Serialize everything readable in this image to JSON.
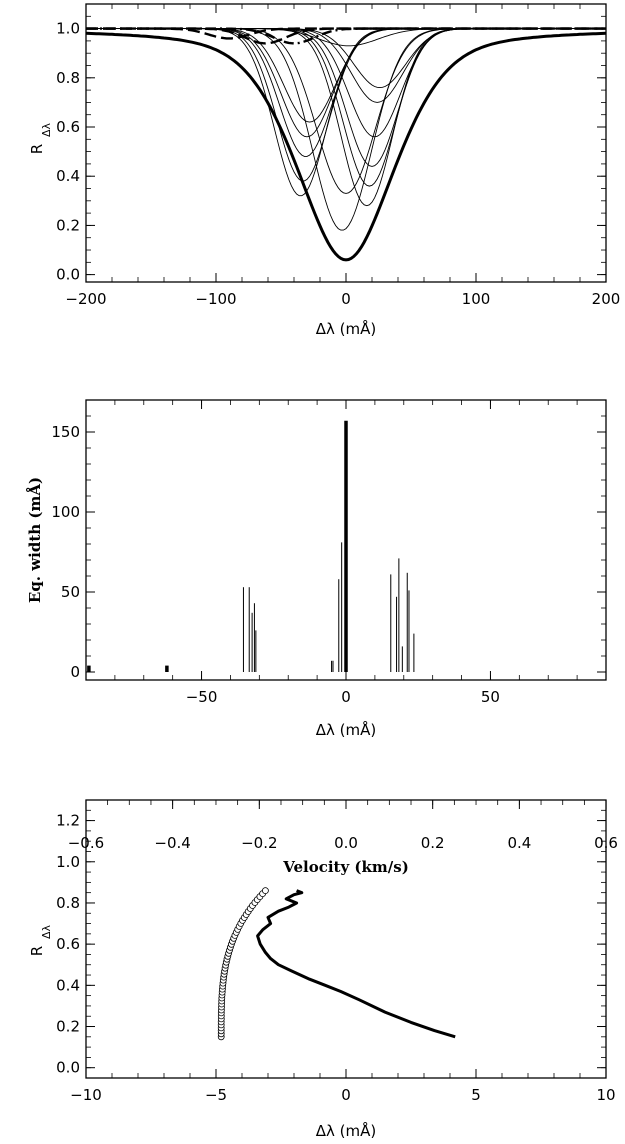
{
  "chart_data": [
    {
      "type": "line",
      "xlabel": "Δλ (mÅ)",
      "ylabel_main": "R",
      "ylabel_sub": "Δλ",
      "xlim": [
        -200,
        200
      ],
      "ylim": [
        -0.03,
        1.1
      ],
      "xticks": [
        -200,
        -100,
        0,
        100,
        200
      ],
      "xtick_labels": [
        "−200",
        "−100",
        "0",
        "100",
        "200"
      ],
      "yticks": [
        0.0,
        0.2,
        0.4,
        0.6,
        0.8,
        1.0
      ],
      "ytick_labels": [
        "0.0",
        "0.2",
        "0.4",
        "0.6",
        "0.8",
        "1.0"
      ],
      "total_profile": {
        "center": 0,
        "depth": 0.94,
        "width": 55,
        "line_width": 3
      },
      "component_profiles": [
        {
          "center": -35,
          "depth": 0.68,
          "width": 28
        },
        {
          "center": -33,
          "depth": 0.62,
          "width": 28
        },
        {
          "center": -31,
          "depth": 0.52,
          "width": 28
        },
        {
          "center": -30,
          "depth": 0.44,
          "width": 28
        },
        {
          "center": -28,
          "depth": 0.38,
          "width": 28
        },
        {
          "center": -3,
          "depth": 0.82,
          "width": 32
        },
        {
          "center": 0,
          "depth": 0.67,
          "width": 32
        },
        {
          "center": 2,
          "depth": 0.07,
          "width": 32
        },
        {
          "center": 16,
          "depth": 0.72,
          "width": 28
        },
        {
          "center": 18,
          "depth": 0.64,
          "width": 28
        },
        {
          "center": 20,
          "depth": 0.56,
          "width": 28
        },
        {
          "center": 22,
          "depth": 0.44,
          "width": 28
        },
        {
          "center": 24,
          "depth": 0.3,
          "width": 28
        },
        {
          "center": 26,
          "depth": 0.24,
          "width": 28
        }
      ],
      "small_profiles": [
        {
          "center": -90,
          "depth": 0.04,
          "width": 22,
          "style": "dashed"
        },
        {
          "center": -62,
          "depth": 0.06,
          "width": 22,
          "style": "dashed"
        },
        {
          "center": -40,
          "depth": 0.06,
          "width": 22,
          "style": "dash-dot"
        }
      ]
    },
    {
      "type": "bar",
      "xlabel": "Δλ (mÅ)",
      "ylabel": "Eq. width (mÅ)",
      "xlim": [
        -90,
        90
      ],
      "ylim": [
        -5,
        170
      ],
      "xticks": [
        -50,
        0,
        50
      ],
      "xtick_labels": [
        "−50",
        "0",
        "50"
      ],
      "yticks": [
        0,
        50,
        100,
        150
      ],
      "ytick_labels": [
        "0",
        "50",
        "100",
        "150"
      ],
      "bars": [
        {
          "x": -89,
          "value": 4,
          "thick": true
        },
        {
          "x": -62,
          "value": 4,
          "thick": true
        },
        {
          "x": -35.5,
          "value": 53
        },
        {
          "x": -33.5,
          "value": 53
        },
        {
          "x": -32.5,
          "value": 37
        },
        {
          "x": -31.7,
          "value": 43
        },
        {
          "x": -31.2,
          "value": 26
        },
        {
          "x": -5,
          "value": 7
        },
        {
          "x": -4.5,
          "value": 7
        },
        {
          "x": -2.5,
          "value": 58
        },
        {
          "x": -1.5,
          "value": 81
        },
        {
          "x": 0,
          "value": 157,
          "thick": true
        },
        {
          "x": 15.5,
          "value": 61
        },
        {
          "x": 17.5,
          "value": 47
        },
        {
          "x": 18.3,
          "value": 71
        },
        {
          "x": 19.5,
          "value": 16
        },
        {
          "x": 21.2,
          "value": 62
        },
        {
          "x": 21.8,
          "value": 51
        },
        {
          "x": 23.5,
          "value": 24
        }
      ]
    },
    {
      "type": "scatter",
      "xlabel": "Δλ (mÅ)",
      "top_xlabel": "Velocity (km/s)",
      "ylabel_main": "R",
      "ylabel_sub": "Δλ",
      "xlim": [
        -10,
        10
      ],
      "ylim": [
        -0.05,
        1.3
      ],
      "xticks": [
        -10,
        -5,
        0,
        5,
        10
      ],
      "xtick_labels": [
        "−10",
        "−5",
        "0",
        "5",
        "10"
      ],
      "top_xticks": [
        -0.6,
        -0.4,
        -0.2,
        0.0,
        0.2,
        0.4,
        0.6
      ],
      "top_xtick_labels": [
        "−0.6",
        "−0.4",
        "−0.2",
        "0.0",
        "0.2",
        "0.4",
        "0.6"
      ],
      "top_axis_factor": 16.67,
      "yticks": [
        0.0,
        0.2,
        0.4,
        0.6,
        0.8,
        1.0,
        1.2
      ],
      "ytick_labels": [
        "0.0",
        "0.2",
        "0.4",
        "0.6",
        "0.8",
        "1.0",
        "1.2"
      ],
      "circle_points": {
        "count": 50,
        "start": [
          -4.8,
          0.15
        ],
        "end": [
          -3.1,
          0.86
        ]
      },
      "bisector": {
        "x": [
          4.2,
          3.4,
          2.5,
          1.5,
          0.5,
          -0.2,
          -0.8,
          -1.4,
          -2.1,
          -2.6,
          -2.9,
          -3.1,
          -3.3,
          -3.4,
          -3.2,
          -2.9,
          -3.0,
          -2.6,
          -2.2,
          -1.9,
          -2.3,
          -2.0,
          -1.7,
          -1.9
        ],
        "y": [
          0.15,
          0.18,
          0.22,
          0.27,
          0.33,
          0.37,
          0.4,
          0.43,
          0.47,
          0.5,
          0.53,
          0.56,
          0.6,
          0.64,
          0.67,
          0.7,
          0.73,
          0.76,
          0.78,
          0.8,
          0.82,
          0.84,
          0.85,
          0.86
        ]
      }
    }
  ]
}
